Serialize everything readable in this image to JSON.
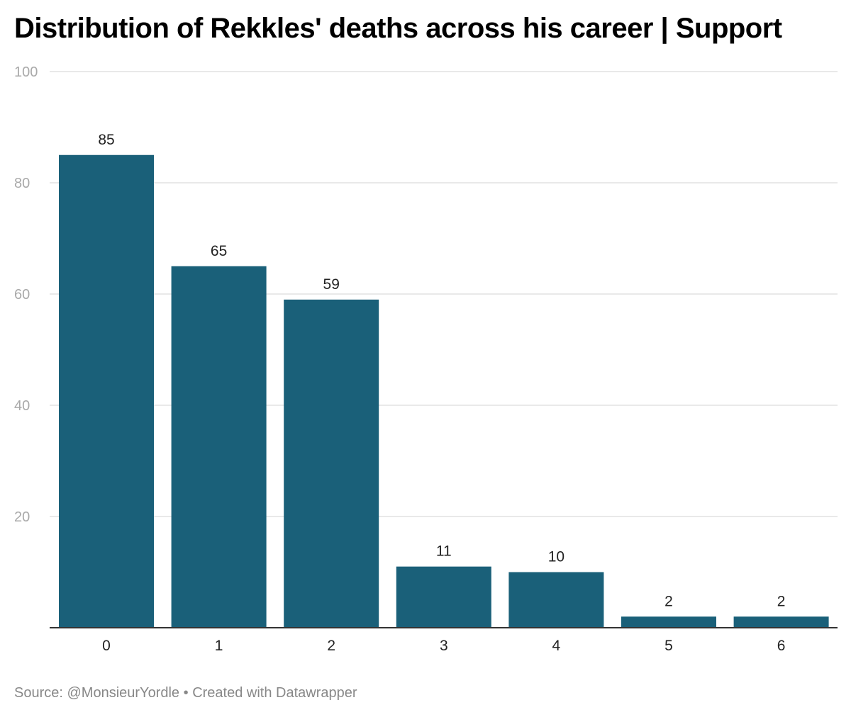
{
  "chart_data": {
    "type": "bar",
    "title": "Distribution of Rekkles' deaths across his career | Support",
    "categories": [
      "0",
      "1",
      "2",
      "3",
      "4",
      "5",
      "6"
    ],
    "values": [
      85,
      65,
      59,
      11,
      10,
      2,
      2
    ],
    "ylim": [
      0,
      100
    ],
    "yticks": [
      20,
      40,
      60,
      80,
      100
    ],
    "grid": true,
    "bar_color": "#1a6079",
    "data_labels": true
  },
  "footer": {
    "source_label": "Source:",
    "source_name": "@MonsieurYordle",
    "separator": "•",
    "created_with": "Created with Datawrapper"
  }
}
